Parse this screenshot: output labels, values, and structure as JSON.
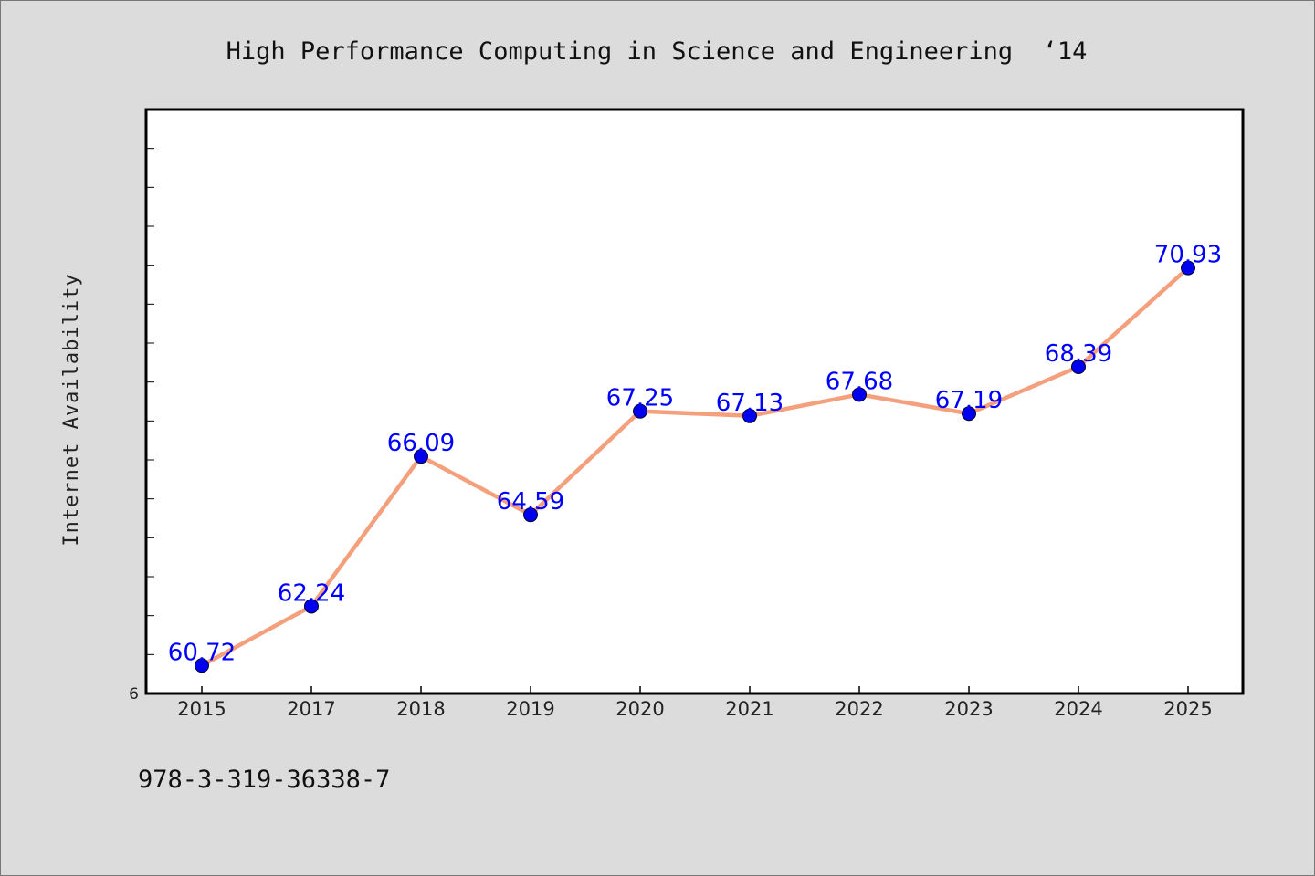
{
  "chart_data": {
    "type": "line",
    "title": "High Performance Computing in Science and Engineering  ‘14",
    "ylabel": "Internet Availability",
    "xlabel": "",
    "categories": [
      "2015",
      "2017",
      "2018",
      "2019",
      "2020",
      "2021",
      "2022",
      "2023",
      "2024",
      "2025"
    ],
    "series": [
      {
        "values": [
          60.72,
          62.24,
          66.09,
          64.59,
          67.25,
          67.13,
          67.68,
          67.19,
          68.39,
          70.93
        ],
        "labels": [
          "60.72",
          "62.24",
          "66.09",
          "64.59",
          "67.25",
          "67.13",
          "67.68",
          "67.19",
          "68.39",
          "70.93"
        ]
      }
    ],
    "ylim": [
      60,
      75
    ],
    "y_tick_labels": [
      "6"
    ],
    "grid": false,
    "line_color": "#f4a07c",
    "marker_color": "#0000ee",
    "label_color": "#0000ff"
  },
  "footer": {
    "isbn": "978-3-319-36338-7"
  }
}
